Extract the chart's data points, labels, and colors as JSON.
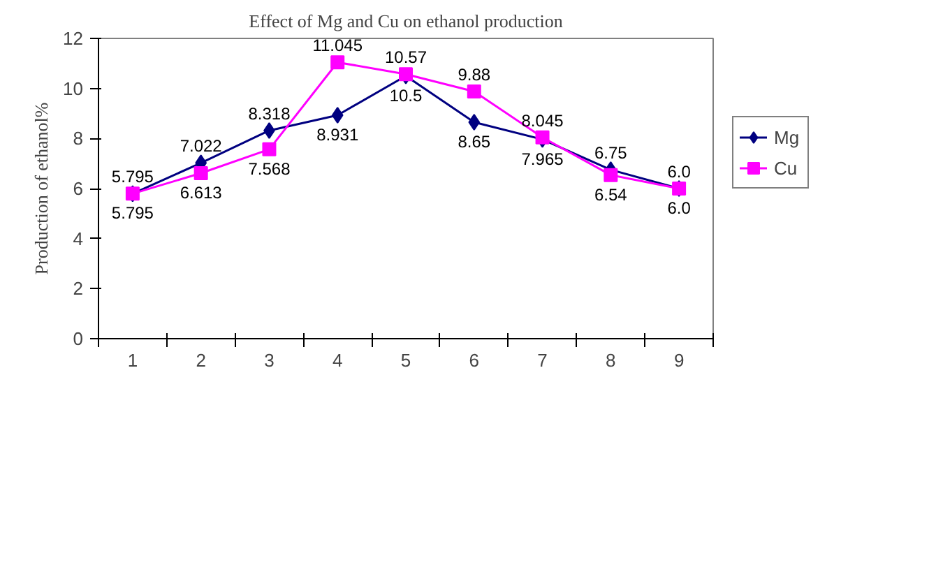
{
  "chart_data": {
    "type": "line",
    "title": "Effect of Mg and Cu on ethanol production",
    "ylabel": "Production of ethanol%",
    "categories": [
      "1",
      "2",
      "3",
      "4",
      "5",
      "6",
      "7",
      "8",
      "9"
    ],
    "series": [
      {
        "name": "Mg",
        "color": "#000080",
        "marker": "diamond",
        "values": [
          5.795,
          7.022,
          8.318,
          8.931,
          10.5,
          8.65,
          7.965,
          6.75,
          6.0
        ],
        "value_labels": [
          "5.795",
          "7.022",
          "8.318",
          "8.931",
          "10.5",
          "8.65",
          "7.965",
          "6.75",
          "6.0"
        ]
      },
      {
        "name": "Cu",
        "color": "#ff00ff",
        "marker": "square",
        "values": [
          5.795,
          6.613,
          7.568,
          11.045,
          10.57,
          9.88,
          8.045,
          6.54,
          6.0
        ],
        "value_labels": [
          "5.795",
          "6.613",
          "7.568",
          "11.045",
          "10.57",
          "9.88",
          "8.045",
          "6.54",
          "6.0"
        ]
      }
    ],
    "ylim": [
      0,
      12
    ],
    "yticks": [
      0,
      2,
      4,
      6,
      8,
      10,
      12
    ],
    "grid": false,
    "legend": "right",
    "line_style": "solid"
  }
}
